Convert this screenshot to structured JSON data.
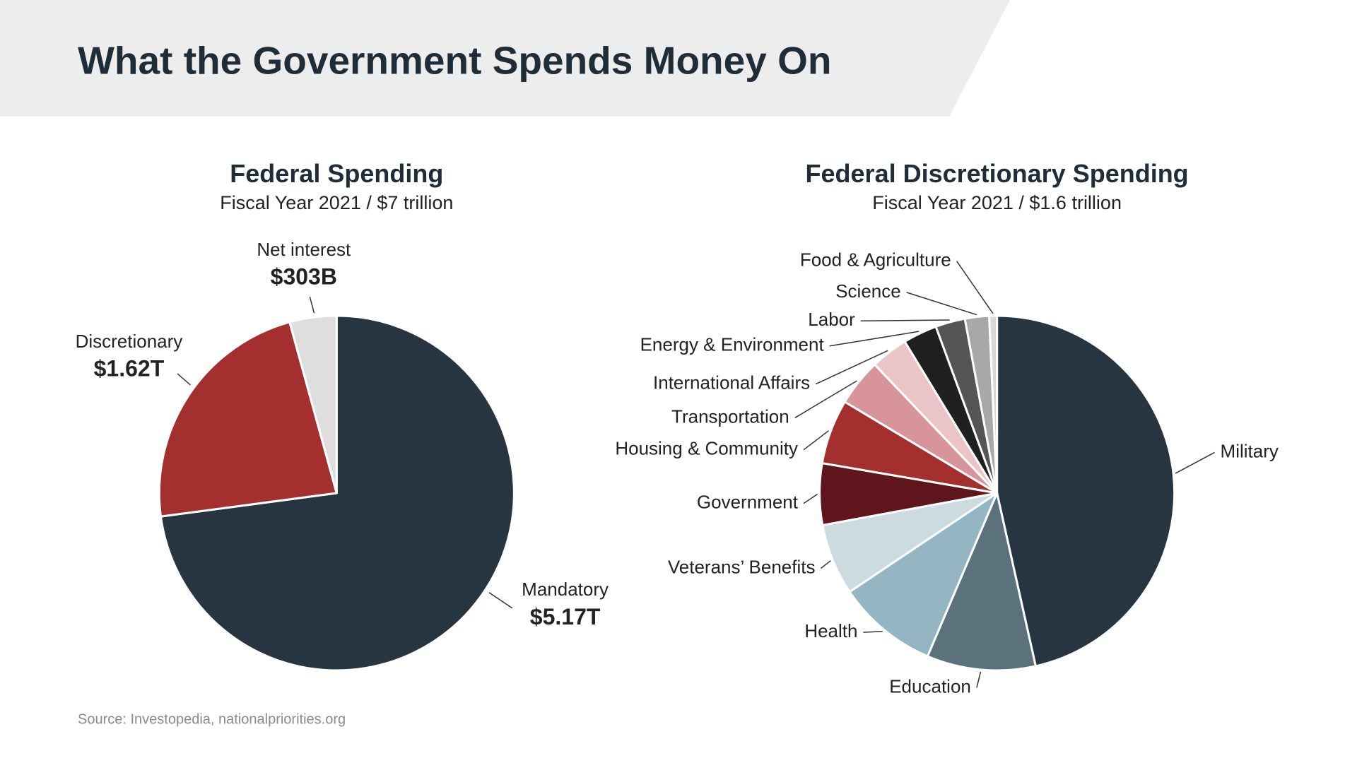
{
  "title": "What the Government Spends Money On",
  "source": "Source: Investopedia, nationalpriorities.org",
  "chart_data": [
    {
      "type": "pie",
      "title": "Federal Spending",
      "subtitle": "Fiscal Year 2021 / $7 trillion",
      "categories": [
        "Mandatory",
        "Discretionary",
        "Net interest"
      ],
      "values": [
        5170,
        1620,
        303
      ],
      "value_labels": [
        "$5.17T",
        "$1.62T",
        "$303B"
      ],
      "colors": [
        "#263540",
        "#a32f2f",
        "#dedede"
      ]
    },
    {
      "type": "pie",
      "title": "Federal Discretionary Spending",
      "subtitle": "Fiscal Year 2021 / $1.6 trillion",
      "categories": [
        "Military",
        "Education",
        "Health",
        "Veterans’ Benefits",
        "Government",
        "Housing & Community",
        "Transportation",
        "International Affairs",
        "Energy & Environment",
        "Labor",
        "Science",
        "Food & Agriculture"
      ],
      "values": [
        46.5,
        9.9,
        9.2,
        6.5,
        5.6,
        5.9,
        4.3,
        3.4,
        3.1,
        2.7,
        2.2,
        0.7
      ],
      "colors": [
        "#263540",
        "#5b717b",
        "#93b6c2",
        "#cddbe0",
        "#5e151c",
        "#a3302f",
        "#d8949b",
        "#ebc4c8",
        "#202020",
        "#555555",
        "#a8a8a8",
        "#d8d8d8"
      ]
    }
  ]
}
